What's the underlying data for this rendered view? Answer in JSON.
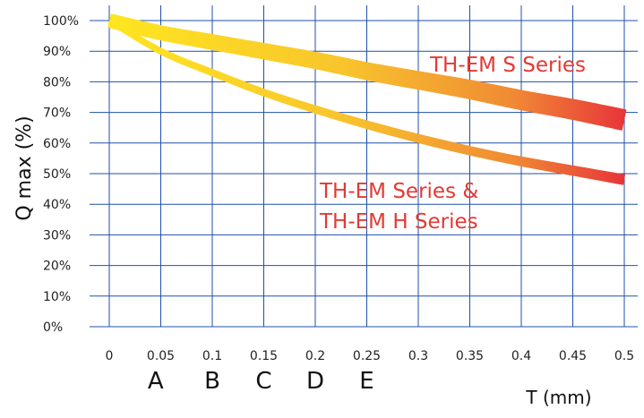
{
  "chart_data": {
    "type": "line",
    "ylabel": "Q max (%)",
    "xlabel": "T (mm)",
    "xlim": [
      0,
      0.5
    ],
    "ylim": [
      0,
      100
    ],
    "grid": true,
    "x_ticks": [
      {
        "value": 0,
        "label": "0"
      },
      {
        "value": 0.05,
        "label": "0.05"
      },
      {
        "value": 0.1,
        "label": "0.1"
      },
      {
        "value": 0.15,
        "label": "0.15"
      },
      {
        "value": 0.2,
        "label": "0.2"
      },
      {
        "value": 0.25,
        "label": "0.25"
      },
      {
        "value": 0.3,
        "label": "0.3"
      },
      {
        "value": 0.35,
        "label": "0.35"
      },
      {
        "value": 0.4,
        "label": "0.4"
      },
      {
        "value": 0.45,
        "label": "0.45"
      },
      {
        "value": 0.5,
        "label": "0.5"
      }
    ],
    "y_ticks": [
      {
        "value": 0,
        "label": "0%"
      },
      {
        "value": 10,
        "label": "10%"
      },
      {
        "value": 20,
        "label": "20%"
      },
      {
        "value": 30,
        "label": "30%"
      },
      {
        "value": 40,
        "label": "40%"
      },
      {
        "value": 50,
        "label": "50%"
      },
      {
        "value": 60,
        "label": "60%"
      },
      {
        "value": 70,
        "label": "70%"
      },
      {
        "value": 80,
        "label": "80%"
      },
      {
        "value": 90,
        "label": "90%"
      },
      {
        "value": 100,
        "label": "100%"
      }
    ],
    "categories": [
      {
        "label": "A",
        "x": 0.045
      },
      {
        "label": "B",
        "x": 0.1
      },
      {
        "label": "C",
        "x": 0.15
      },
      {
        "label": "D",
        "x": 0.2
      },
      {
        "label": "E",
        "x": 0.25
      }
    ],
    "series": [
      {
        "name": "TH-EM S Series",
        "x": [
          0,
          0.05,
          0.1,
          0.15,
          0.2,
          0.25,
          0.3,
          0.35,
          0.4,
          0.45,
          0.5
        ],
        "values": [
          100,
          96,
          93,
          90,
          87,
          83.5,
          80.5,
          77.5,
          74,
          71,
          67.5
        ]
      },
      {
        "name": "TH-EM Series & TH-EM H Series",
        "name_lines": [
          "TH-EM Series &",
          "TH-EM H Series"
        ],
        "x": [
          0,
          0.05,
          0.1,
          0.15,
          0.2,
          0.25,
          0.3,
          0.35,
          0.4,
          0.45,
          0.5
        ],
        "values": [
          100,
          90,
          83,
          76.5,
          71,
          66,
          61.5,
          57.5,
          54,
          51,
          48
        ]
      }
    ],
    "gradient_colors": [
      "#ffe620",
      "#f8c52c",
      "#f08a34",
      "#e8343a"
    ]
  }
}
